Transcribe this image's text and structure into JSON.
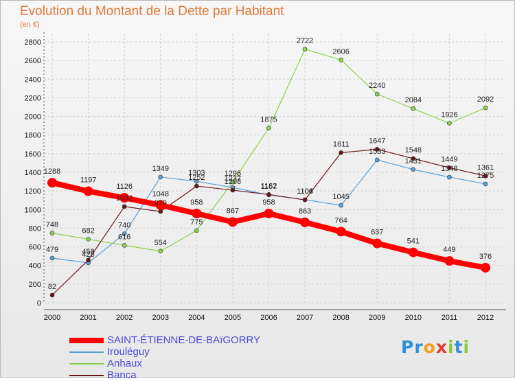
{
  "title": "Evolution du Montant de la Dette par Habitant",
  "subtitle": "(en €)",
  "logo": {
    "text": "Proxiti",
    "letters": [
      {
        "ch": "P",
        "color": "#2f8fd8"
      },
      {
        "ch": "r",
        "color": "#2f8fd8"
      },
      {
        "ch": "o",
        "color": "#f0a020"
      },
      {
        "ch": "x",
        "color": "#e63a2a"
      },
      {
        "ch": "i",
        "color": "#8cc63f"
      },
      {
        "ch": "t",
        "color": "#2f8fd8"
      },
      {
        "ch": "i",
        "color": "#8cc63f"
      }
    ]
  },
  "chart_data": {
    "type": "line",
    "x": [
      2000,
      2001,
      2002,
      2003,
      2004,
      2005,
      2006,
      2007,
      2008,
      2009,
      2010,
      2011,
      2012
    ],
    "ylim": [
      0,
      2800
    ],
    "yticks": [
      0,
      200,
      400,
      600,
      800,
      1000,
      1200,
      1400,
      1600,
      1800,
      2000,
      2200,
      2400,
      2600,
      2800
    ],
    "grid": true,
    "legend_position": "bottom-left",
    "series": [
      {
        "name": "SAINT-ÉTIENNE-DE-BAïGORRY",
        "color": "#ff0000",
        "thick": true,
        "values": [
          1288,
          1197,
          1126,
          1048,
          958,
          867,
          958,
          863,
          764,
          637,
          541,
          449,
          376
        ]
      },
      {
        "name": "Irouléguy",
        "color": "#5a9fd4",
        "values": [
          479,
          428,
          740,
          1349,
          1303,
          1237,
          1157,
          1106,
          1045,
          1533,
          1431,
          1348,
          1275
        ]
      },
      {
        "name": "Anhaux",
        "color": "#8ed14f",
        "values": [
          748,
          682,
          616,
          554,
          775,
          1296,
          1875,
          2722,
          2606,
          2240,
          2084,
          1926,
          2092
        ]
      },
      {
        "name": "Banca",
        "color": "#6b1414",
        "values": [
          82,
          458,
          1032,
          979,
          1252,
          1208,
          1162,
          1104,
          1611,
          1647,
          1548,
          1449,
          1361
        ]
      }
    ]
  }
}
